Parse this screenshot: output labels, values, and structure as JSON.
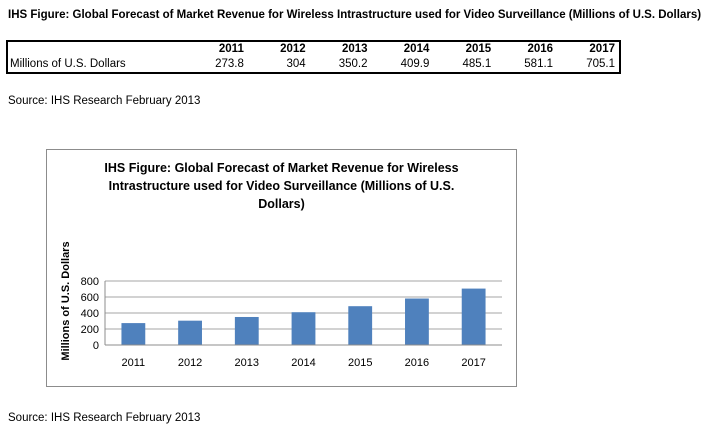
{
  "page": {
    "title": "IHS Figure: Global Forecast of Market Revenue for Wireless Intrastructure used for Video Surveillance (Millions of U.S. Dollars)",
    "source_top": "Source: IHS Research February 2013",
    "source_bottom": "Source: IHS Research February 2013"
  },
  "table": {
    "row_label": "Millions of U.S. Dollars",
    "years": [
      "2011",
      "2012",
      "2013",
      "2014",
      "2015",
      "2016",
      "2017"
    ],
    "values": [
      "273.8",
      "304",
      "350.2",
      "409.9",
      "485.1",
      "581.1",
      "705.1"
    ]
  },
  "chart_data": {
    "type": "bar",
    "title_lines": [
      "IHS Figure: Global Forecast of Market Revenue for Wireless",
      "Intrastructure used for Video Surveillance (Millions of U.S.",
      "Dollars)"
    ],
    "categories": [
      "2011",
      "2012",
      "2013",
      "2014",
      "2015",
      "2016",
      "2017"
    ],
    "values": [
      273.8,
      304,
      350.2,
      409.9,
      485.1,
      581.1,
      705.1
    ],
    "ylabel": "Millions of U.S. Dollars",
    "xlabel": "",
    "ylim": [
      0,
      800
    ],
    "yticks": [
      "0",
      "200",
      "400",
      "600",
      "800"
    ],
    "grid": true,
    "legend": "none",
    "bar_color": "#4f81bd"
  }
}
